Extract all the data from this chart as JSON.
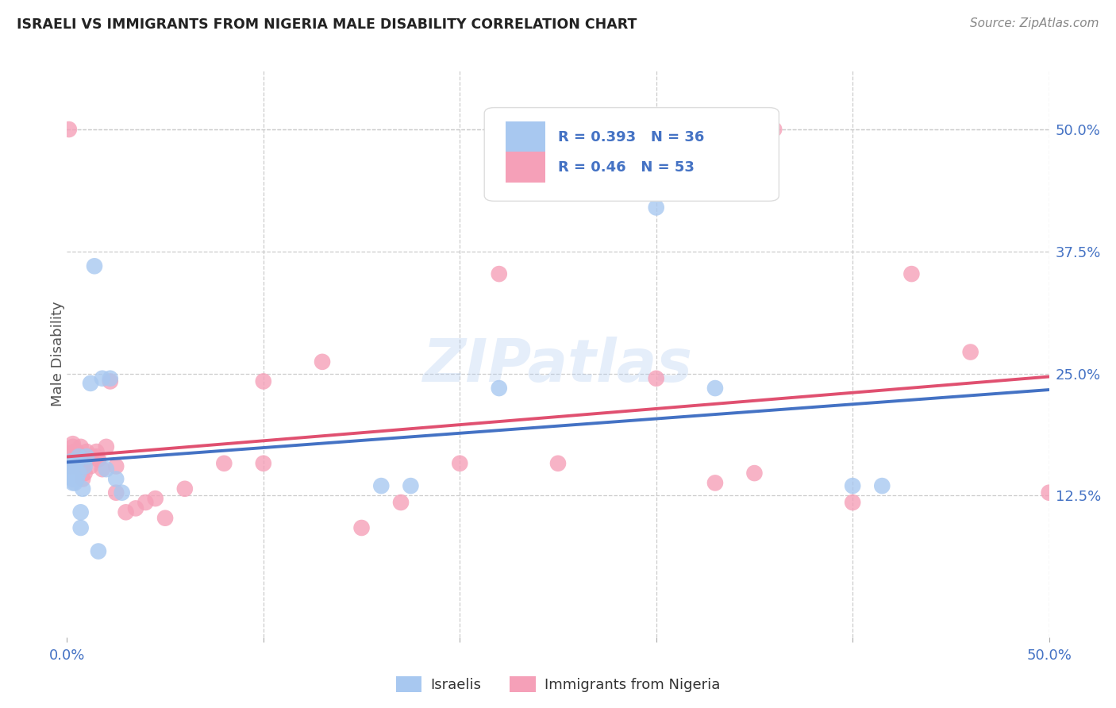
{
  "title": "ISRAELI VS IMMIGRANTS FROM NIGERIA MALE DISABILITY CORRELATION CHART",
  "source": "Source: ZipAtlas.com",
  "ylabel": "Male Disability",
  "xlim": [
    0.0,
    0.5
  ],
  "ylim": [
    -0.02,
    0.56
  ],
  "xtick_values": [
    0.0,
    0.1,
    0.2,
    0.3,
    0.4,
    0.5
  ],
  "xtick_labels": [
    "0.0%",
    "",
    "",
    "",
    "",
    "50.0%"
  ],
  "ytick_values": [
    0.125,
    0.25,
    0.375,
    0.5
  ],
  "ytick_labels": [
    "12.5%",
    "25.0%",
    "37.5%",
    "50.0%"
  ],
  "grid_color": "#cccccc",
  "background_color": "#ffffff",
  "israelis_color": "#a8c8f0",
  "nigeria_color": "#f5a0b8",
  "israelis_line_color": "#4472c4",
  "nigeria_line_color": "#e05070",
  "israelis_R": 0.393,
  "israelis_N": 36,
  "nigeria_R": 0.46,
  "nigeria_N": 53,
  "legend_label_israelis": "Israelis",
  "legend_label_nigeria": "Immigrants from Nigeria",
  "watermark": "ZIPatlas",
  "israelis_x": [
    0.001,
    0.001,
    0.001,
    0.002,
    0.002,
    0.002,
    0.002,
    0.003,
    0.003,
    0.003,
    0.004,
    0.004,
    0.005,
    0.005,
    0.006,
    0.006,
    0.007,
    0.007,
    0.008,
    0.009,
    0.01,
    0.012,
    0.014,
    0.016,
    0.018,
    0.02,
    0.022,
    0.025,
    0.028,
    0.16,
    0.175,
    0.22,
    0.3,
    0.33,
    0.4,
    0.415
  ],
  "israelis_y": [
    0.155,
    0.148,
    0.152,
    0.158,
    0.148,
    0.152,
    0.16,
    0.138,
    0.142,
    0.155,
    0.138,
    0.142,
    0.142,
    0.16,
    0.148,
    0.165,
    0.092,
    0.108,
    0.132,
    0.155,
    0.165,
    0.24,
    0.36,
    0.068,
    0.245,
    0.152,
    0.245,
    0.142,
    0.128,
    0.135,
    0.135,
    0.235,
    0.42,
    0.235,
    0.135,
    0.135
  ],
  "nigeria_x": [
    0.001,
    0.001,
    0.002,
    0.002,
    0.003,
    0.003,
    0.003,
    0.004,
    0.004,
    0.005,
    0.005,
    0.006,
    0.007,
    0.007,
    0.008,
    0.008,
    0.009,
    0.01,
    0.01,
    0.012,
    0.013,
    0.015,
    0.015,
    0.016,
    0.018,
    0.02,
    0.022,
    0.025,
    0.025,
    0.03,
    0.035,
    0.04,
    0.045,
    0.05,
    0.06,
    0.08,
    0.1,
    0.1,
    0.13,
    0.15,
    0.17,
    0.2,
    0.22,
    0.25,
    0.3,
    0.33,
    0.35,
    0.36,
    0.4,
    0.43,
    0.46,
    0.5,
    0.001
  ],
  "nigeria_y": [
    0.16,
    0.168,
    0.155,
    0.165,
    0.165,
    0.175,
    0.178,
    0.162,
    0.17,
    0.155,
    0.17,
    0.162,
    0.165,
    0.175,
    0.142,
    0.155,
    0.148,
    0.162,
    0.17,
    0.155,
    0.165,
    0.165,
    0.17,
    0.162,
    0.152,
    0.175,
    0.242,
    0.128,
    0.155,
    0.108,
    0.112,
    0.118,
    0.122,
    0.102,
    0.132,
    0.158,
    0.242,
    0.158,
    0.262,
    0.092,
    0.118,
    0.158,
    0.352,
    0.158,
    0.245,
    0.138,
    0.148,
    0.5,
    0.118,
    0.352,
    0.272,
    0.128,
    0.5
  ]
}
